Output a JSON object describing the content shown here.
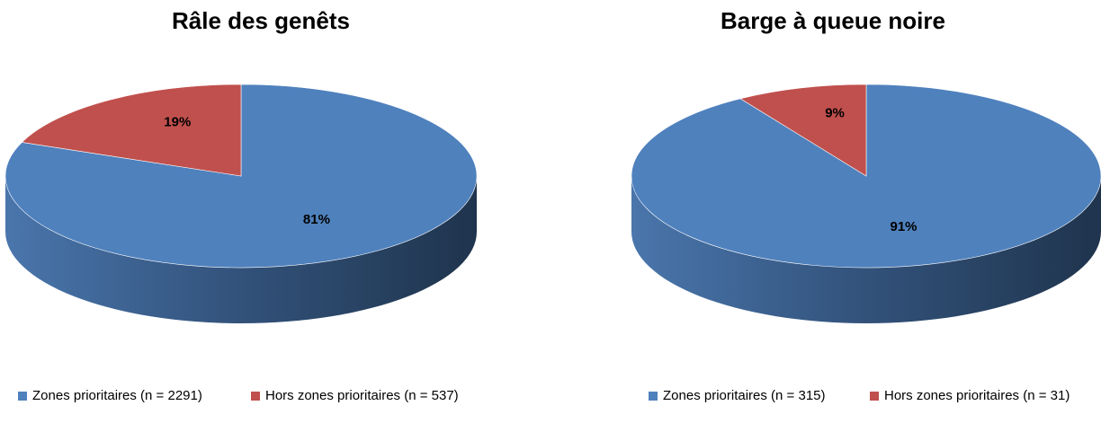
{
  "colors": {
    "blue_top": "#4F81BD",
    "blue_side_light": "#4A76AC",
    "blue_side_dark": "#1F344D",
    "red_top": "#C0504D",
    "red_side": "#8C3A38"
  },
  "chart_data": [
    {
      "type": "pie",
      "title": "Râle des genêts",
      "slices": [
        {
          "label": "Zones prioritaires (n = 2291)",
          "value": 81,
          "display": "81%",
          "color": "#4F81BD"
        },
        {
          "label": "Hors zones prioritaires (n = 537)",
          "value": 19,
          "display": "19%",
          "color": "#C0504D"
        }
      ],
      "legend": "bottom"
    },
    {
      "type": "pie",
      "title": "Barge à queue noire",
      "slices": [
        {
          "label": "Zones prioritaires (n = 315)",
          "value": 91,
          "display": "91%",
          "color": "#4F81BD"
        },
        {
          "label": "Hors zones prioritaires (n = 31)",
          "value": 9,
          "display": "9%",
          "color": "#C0504D"
        }
      ],
      "legend": "bottom"
    }
  ]
}
